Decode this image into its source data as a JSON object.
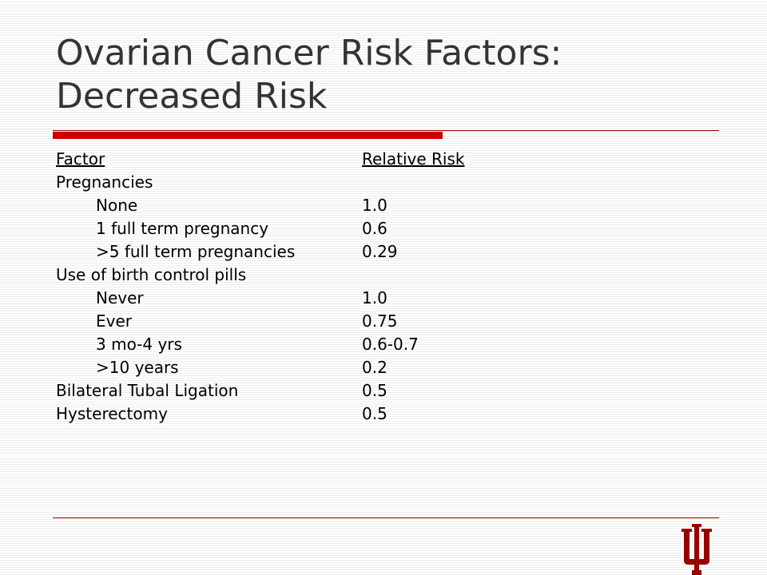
{
  "slide": {
    "title": "Ovarian Cancer Risk Factors: Decreased Risk"
  },
  "table": {
    "headers": {
      "factor": "Factor",
      "risk": "Relative Risk"
    },
    "rows": [
      {
        "factor": "Pregnancies",
        "risk": "",
        "indent": false
      },
      {
        "factor": "None",
        "risk": "1.0",
        "indent": true
      },
      {
        "factor": "1 full term pregnancy",
        "risk": "0.6",
        "indent": true
      },
      {
        "factor": ">5 full term pregnancies",
        "risk": "0.29",
        "indent": true
      },
      {
        "factor": "Use of birth control pills",
        "risk": "",
        "indent": false
      },
      {
        "factor": "Never",
        "risk": "1.0",
        "indent": true
      },
      {
        "factor": "Ever",
        "risk": "0.75",
        "indent": true
      },
      {
        "factor": "3 mo-4 yrs",
        "risk": "0.6-0.7",
        "indent": true
      },
      {
        "factor": ">10 years",
        "risk": "0.2",
        "indent": true
      },
      {
        "factor": "Bilateral Tubal Ligation",
        "risk": "0.5",
        "indent": false
      },
      {
        "factor": "Hysterectomy",
        "risk": "0.5",
        "indent": false
      }
    ]
  },
  "logo": {
    "icon": "iu-trident-logo-icon",
    "color": "#990000"
  },
  "colors": {
    "accent": "#cc0000",
    "rule": "#990000",
    "title": "#333333"
  }
}
